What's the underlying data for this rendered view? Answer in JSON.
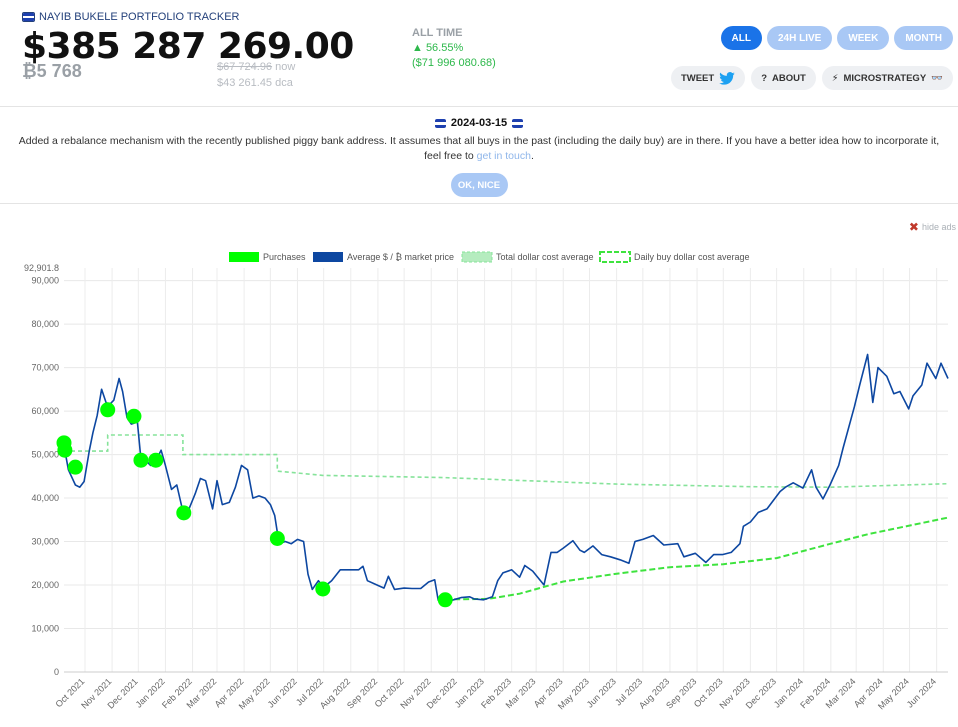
{
  "header": {
    "brand": "NAYIB BUKELE PORTFOLIO TRACKER",
    "portfolio_value": "$385 287 269.00",
    "btc_amount": "₿5 768",
    "price_now_value": "$67 724.96",
    "price_now_suffix": "now",
    "price_dca": "$43 261.45 dca",
    "alltime_label": "ALL TIME",
    "alltime_pct": "▲ 56.55%",
    "alltime_usd": "($71 996 080.68)"
  },
  "range_tabs": [
    "ALL",
    "24H LIVE",
    "WEEK",
    "MONTH"
  ],
  "active_tab": "ALL",
  "social": {
    "tweet": "TWEET",
    "about": "ABOUT",
    "microstrategy": "MICROSTRATEGY"
  },
  "notice": {
    "date": "2024-03-15",
    "text": "Added a rebalance mechanism with the recently published piggy bank address. It assumes that all buys in the past (including the daily buy) are in there. If you have a better idea how to incorporate it, feel free to",
    "link": "get in touch",
    "end": ".",
    "ok_button": "OK, NICE"
  },
  "hide_ads": "hide ads",
  "colors": {
    "price": "#0d47a1",
    "purchase": "#00ff00",
    "total_dca": "#86e39a",
    "daily_dca": "#3ee33e",
    "accent": "#1a73e8"
  },
  "chart_data": {
    "type": "line",
    "legend": [
      "Purchases",
      "Average $ / ₿ market price",
      "Total dollar cost average",
      "Daily buy dollar cost average"
    ],
    "y_max_label": "92,901.8",
    "yticks": [
      0,
      10000,
      20000,
      30000,
      40000,
      50000,
      60000,
      70000,
      80000,
      90000
    ],
    "ytick_labels": [
      "0",
      "10,000",
      "20,000",
      "30,000",
      "40,000",
      "50,000",
      "60,000",
      "70,000",
      "80,000",
      "90,000"
    ],
    "ylim": [
      0,
      92901.8
    ],
    "x_range": [
      "2021-09-07",
      "2024-06-14"
    ],
    "xticks": [
      "2021-10-01",
      "2021-11-01",
      "2021-12-01",
      "2022-01-01",
      "2022-02-01",
      "2022-03-01",
      "2022-04-01",
      "2022-05-01",
      "2022-06-01",
      "2022-07-01",
      "2022-08-01",
      "2022-09-01",
      "2022-10-01",
      "2022-11-01",
      "2022-12-01",
      "2023-01-01",
      "2023-02-01",
      "2023-03-01",
      "2023-04-01",
      "2023-05-01",
      "2023-06-01",
      "2023-07-01",
      "2023-08-01",
      "2023-09-01",
      "2023-10-01",
      "2023-11-01",
      "2023-12-01",
      "2024-01-01",
      "2024-02-01",
      "2024-03-01",
      "2024-04-01",
      "2024-05-01",
      "2024-06-01"
    ],
    "xtick_labels": [
      "Oct 2021",
      "Nov 2021",
      "Dec 2021",
      "Jan 2022",
      "Feb 2022",
      "Mar 2022",
      "Apr 2022",
      "May 2022",
      "Jun 2022",
      "Jul 2022",
      "Aug 2022",
      "Sep 2022",
      "Oct 2022",
      "Nov 2022",
      "Dec 2022",
      "Jan 2023",
      "Feb 2023",
      "Mar 2023",
      "Apr 2023",
      "May 2023",
      "Jun 2023",
      "Jul 2023",
      "Aug 2023",
      "Sep 2023",
      "Oct 2023",
      "Nov 2023",
      "Dec 2023",
      "Jan 2024",
      "Feb 2024",
      "Mar 2024",
      "Apr 2024",
      "May 2024",
      "Jun 2024"
    ],
    "series": [
      {
        "name": "Average $ / ₿ market price",
        "points": [
          [
            "2021-09-07",
            52000
          ],
          [
            "2021-09-12",
            46500
          ],
          [
            "2021-09-20",
            43000
          ],
          [
            "2021-09-25",
            42500
          ],
          [
            "2021-09-30",
            43800
          ],
          [
            "2021-10-06",
            51000
          ],
          [
            "2021-10-10",
            55000
          ],
          [
            "2021-10-15",
            59000
          ],
          [
            "2021-10-20",
            65000
          ],
          [
            "2021-10-25",
            62000
          ],
          [
            "2021-10-29",
            61500
          ],
          [
            "2021-11-03",
            62500
          ],
          [
            "2021-11-09",
            67500
          ],
          [
            "2021-11-13",
            64500
          ],
          [
            "2021-11-18",
            58500
          ],
          [
            "2021-11-23",
            57000
          ],
          [
            "2021-11-30",
            57500
          ],
          [
            "2021-12-04",
            49000
          ],
          [
            "2021-12-10",
            48500
          ],
          [
            "2021-12-15",
            47500
          ],
          [
            "2021-12-21",
            48500
          ],
          [
            "2021-12-27",
            51000
          ],
          [
            "2022-01-01",
            47500
          ],
          [
            "2022-01-08",
            42000
          ],
          [
            "2022-01-14",
            43000
          ],
          [
            "2022-01-22",
            36000
          ],
          [
            "2022-01-28",
            37500
          ],
          [
            "2022-02-04",
            41000
          ],
          [
            "2022-02-10",
            44500
          ],
          [
            "2022-02-16",
            44000
          ],
          [
            "2022-02-24",
            37500
          ],
          [
            "2022-03-01",
            44000
          ],
          [
            "2022-03-07",
            38500
          ],
          [
            "2022-03-15",
            39000
          ],
          [
            "2022-03-22",
            42500
          ],
          [
            "2022-03-29",
            47500
          ],
          [
            "2022-04-05",
            46500
          ],
          [
            "2022-04-11",
            40000
          ],
          [
            "2022-04-18",
            40500
          ],
          [
            "2022-04-25",
            40000
          ],
          [
            "2022-05-01",
            38500
          ],
          [
            "2022-05-06",
            36000
          ],
          [
            "2022-05-11",
            29500
          ],
          [
            "2022-05-18",
            30000
          ],
          [
            "2022-05-25",
            29500
          ],
          [
            "2022-06-01",
            30500
          ],
          [
            "2022-06-08",
            30000
          ],
          [
            "2022-06-13",
            22500
          ],
          [
            "2022-06-18",
            19000
          ],
          [
            "2022-06-25",
            21000
          ],
          [
            "2022-07-01",
            19500
          ],
          [
            "2022-07-10",
            21000
          ],
          [
            "2022-07-20",
            23500
          ],
          [
            "2022-07-30",
            23500
          ],
          [
            "2022-08-10",
            23500
          ],
          [
            "2022-08-15",
            24300
          ],
          [
            "2022-08-20",
            21000
          ],
          [
            "2022-08-31",
            20000
          ],
          [
            "2022-09-08",
            19300
          ],
          [
            "2022-09-13",
            22000
          ],
          [
            "2022-09-20",
            19000
          ],
          [
            "2022-10-01",
            19300
          ],
          [
            "2022-10-10",
            19200
          ],
          [
            "2022-10-20",
            19200
          ],
          [
            "2022-10-29",
            20700
          ],
          [
            "2022-11-05",
            21200
          ],
          [
            "2022-11-09",
            16500
          ],
          [
            "2022-11-15",
            16700
          ],
          [
            "2022-11-25",
            16500
          ],
          [
            "2022-12-05",
            17100
          ],
          [
            "2022-12-15",
            17300
          ],
          [
            "2022-12-20",
            16800
          ],
          [
            "2022-12-31",
            16600
          ],
          [
            "2023-01-10",
            17300
          ],
          [
            "2023-01-16",
            21000
          ],
          [
            "2023-01-22",
            22800
          ],
          [
            "2023-02-01",
            23500
          ],
          [
            "2023-02-10",
            21800
          ],
          [
            "2023-02-16",
            24500
          ],
          [
            "2023-02-25",
            23200
          ],
          [
            "2023-03-10",
            20000
          ],
          [
            "2023-03-18",
            27500
          ],
          [
            "2023-03-25",
            27500
          ],
          [
            "2023-04-01",
            28500
          ],
          [
            "2023-04-12",
            30200
          ],
          [
            "2023-04-20",
            28000
          ],
          [
            "2023-04-25",
            27500
          ],
          [
            "2023-05-05",
            29000
          ],
          [
            "2023-05-15",
            27000
          ],
          [
            "2023-05-25",
            26500
          ],
          [
            "2023-06-05",
            25800
          ],
          [
            "2023-06-15",
            25000
          ],
          [
            "2023-06-22",
            30000
          ],
          [
            "2023-07-01",
            30500
          ],
          [
            "2023-07-13",
            31400
          ],
          [
            "2023-07-25",
            29200
          ],
          [
            "2023-08-10",
            29500
          ],
          [
            "2023-08-17",
            26500
          ],
          [
            "2023-08-30",
            27300
          ],
          [
            "2023-09-11",
            25200
          ],
          [
            "2023-09-20",
            27000
          ],
          [
            "2023-09-30",
            27000
          ],
          [
            "2023-10-10",
            27500
          ],
          [
            "2023-10-20",
            29500
          ],
          [
            "2023-10-24",
            33500
          ],
          [
            "2023-11-01",
            34500
          ],
          [
            "2023-11-10",
            36700
          ],
          [
            "2023-11-20",
            37500
          ],
          [
            "2023-12-05",
            41500
          ],
          [
            "2023-12-11",
            42500
          ],
          [
            "2023-12-20",
            43500
          ],
          [
            "2023-12-31",
            42300
          ],
          [
            "2024-01-10",
            46500
          ],
          [
            "2024-01-15",
            42500
          ],
          [
            "2024-01-23",
            39800
          ],
          [
            "2024-01-31",
            43000
          ],
          [
            "2024-02-10",
            47500
          ],
          [
            "2024-02-15",
            51500
          ],
          [
            "2024-02-28",
            61000
          ],
          [
            "2024-03-05",
            66000
          ],
          [
            "2024-03-14",
            73000
          ],
          [
            "2024-03-20",
            62000
          ],
          [
            "2024-03-26",
            70000
          ],
          [
            "2024-04-05",
            68000
          ],
          [
            "2024-04-13",
            64000
          ],
          [
            "2024-04-20",
            64500
          ],
          [
            "2024-04-30",
            60500
          ],
          [
            "2024-05-05",
            63500
          ],
          [
            "2024-05-15",
            66000
          ],
          [
            "2024-05-21",
            71000
          ],
          [
            "2024-05-31",
            67500
          ],
          [
            "2024-06-06",
            71000
          ],
          [
            "2024-06-14",
            67500
          ]
        ]
      },
      {
        "name": "Total dollar cost average",
        "points": [
          [
            "2021-09-07",
            50800
          ],
          [
            "2021-10-27",
            50800
          ],
          [
            "2021-10-27",
            54500
          ],
          [
            "2022-01-21",
            54500
          ],
          [
            "2022-01-21",
            50000
          ],
          [
            "2022-05-09",
            50000
          ],
          [
            "2022-05-09",
            46200
          ],
          [
            "2022-06-30",
            45200
          ],
          [
            "2022-11-17",
            44700
          ],
          [
            "2023-06-01",
            43200
          ],
          [
            "2023-11-01",
            42600
          ],
          [
            "2024-02-01",
            42500
          ],
          [
            "2024-06-14",
            43300
          ]
        ]
      },
      {
        "name": "Daily buy dollar cost average",
        "points": [
          [
            "2022-11-17",
            16700
          ],
          [
            "2023-01-05",
            16800
          ],
          [
            "2023-02-10",
            18000
          ],
          [
            "2023-04-01",
            20800
          ],
          [
            "2023-06-01",
            22600
          ],
          [
            "2023-08-01",
            24100
          ],
          [
            "2023-10-01",
            24800
          ],
          [
            "2023-12-01",
            26200
          ],
          [
            "2024-02-01",
            29500
          ],
          [
            "2024-03-15",
            31700
          ],
          [
            "2024-06-14",
            35500
          ]
        ]
      },
      {
        "name": "Purchases",
        "points": [
          [
            "2021-09-07",
            52700
          ],
          [
            "2021-09-08",
            51000
          ],
          [
            "2021-09-20",
            47100
          ],
          [
            "2021-10-27",
            60300
          ],
          [
            "2021-11-26",
            58800
          ],
          [
            "2021-12-04",
            48700
          ],
          [
            "2021-12-21",
            48700
          ],
          [
            "2022-01-22",
            36600
          ],
          [
            "2022-05-09",
            30700
          ],
          [
            "2022-06-30",
            19100
          ],
          [
            "2022-11-17",
            16600
          ]
        ]
      }
    ]
  }
}
